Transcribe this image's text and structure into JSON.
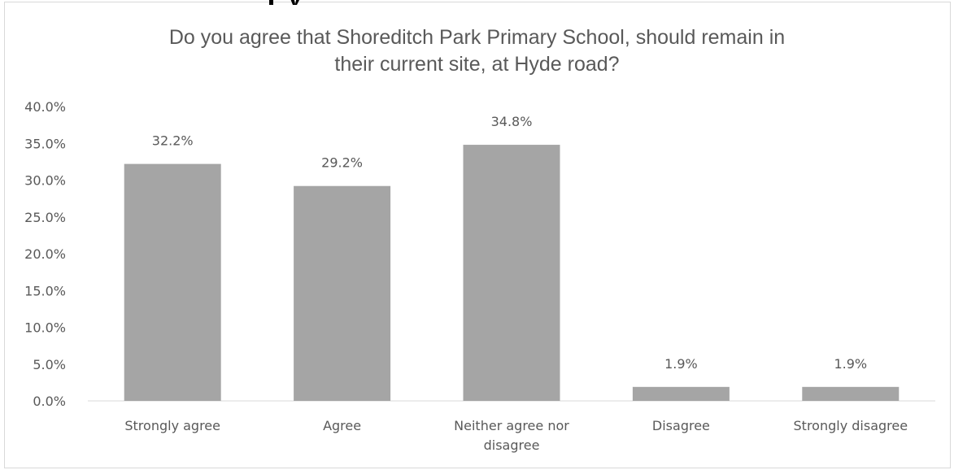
{
  "chart_data": {
    "type": "bar",
    "title_lines": [
      "Do you agree that Shoreditch Park Primary School, should remain in",
      "their current site, at Hyde road?"
    ],
    "categories": [
      [
        "Strongly agree"
      ],
      [
        "Agree"
      ],
      [
        "Neither agree nor",
        "disagree"
      ],
      [
        "Disagree"
      ],
      [
        "Strongly disagree"
      ]
    ],
    "values": [
      32.2,
      29.2,
      34.8,
      1.9,
      1.9
    ],
    "data_labels": [
      "32.2%",
      "29.2%",
      "34.8%",
      "1.9%",
      "1.9%"
    ],
    "y_ticks": [
      "0.0%",
      "5.0%",
      "10.0%",
      "15.0%",
      "20.0%",
      "25.0%",
      "30.0%",
      "35.0%",
      "40.0%"
    ],
    "ylim": [
      0,
      40
    ],
    "bar_color": "#a5a5a5",
    "grid": false,
    "legend": "none"
  }
}
